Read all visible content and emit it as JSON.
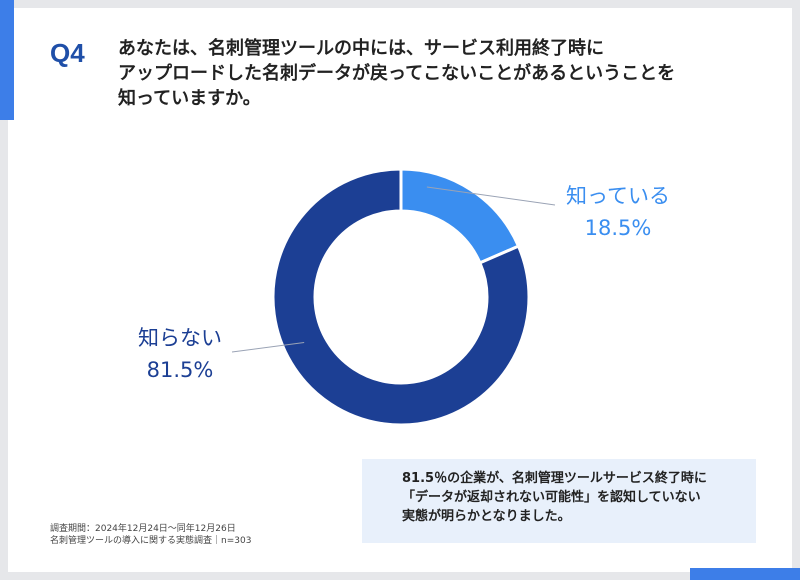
{
  "question": {
    "number": "Q4",
    "lines": [
      "あなたは、名刺管理ツールの中には、サービス利用終了時に",
      "アップロードした名刺データが戻ってこないことがあるということを",
      "知っていますか。"
    ]
  },
  "chart_data": {
    "type": "pie",
    "style": "donut",
    "slices": [
      {
        "label": "知っている",
        "value": 18.5,
        "value_label": "18.5%",
        "color": "#3a8ef0"
      },
      {
        "label": "知らない",
        "value": 81.5,
        "value_label": "81.5%",
        "color": "#1c3f94"
      }
    ],
    "start": "12 o'clock",
    "direction": "clockwise"
  },
  "summary": {
    "lines": [
      "81.5％の企業が、名刺管理ツールサービス終了時に",
      "「データが返却されない可能性」を認知していない",
      "実態が明らかとなりました。"
    ]
  },
  "note": {
    "line1": "調査期間：2024年12月24日〜同年12月26日",
    "line2": "名刺管理ツールの導入に関する実態調査｜n=303"
  },
  "colors": {
    "accent": "#3d7ee8",
    "title": "#1f4fa8",
    "summary_bg": "#e8f0fb"
  }
}
